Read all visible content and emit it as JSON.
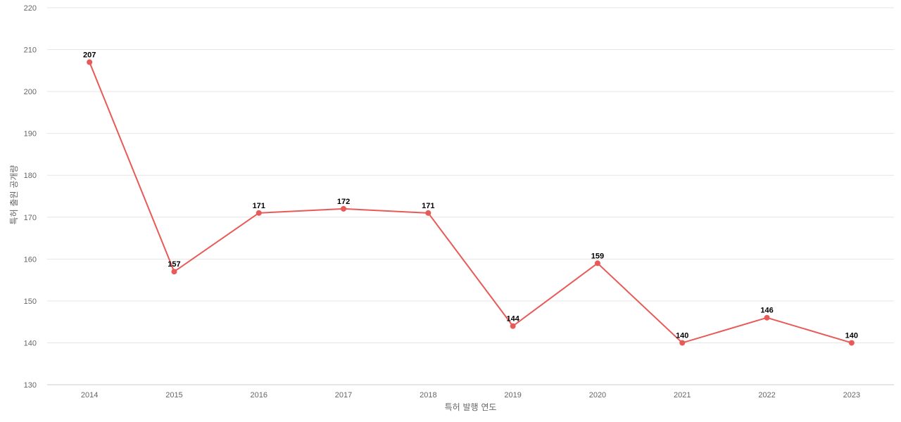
{
  "chart_data": {
    "type": "line",
    "title": "",
    "xlabel": "특허 발행 연도",
    "ylabel": "특허 출원 공개량",
    "categories": [
      "2014",
      "2015",
      "2016",
      "2017",
      "2018",
      "2019",
      "2020",
      "2021",
      "2022",
      "2023"
    ],
    "series": [
      {
        "values": [
          207,
          157,
          171,
          172,
          171,
          144,
          159,
          140,
          146,
          140
        ],
        "color": "#e85a57"
      }
    ],
    "ylim": [
      130,
      220
    ],
    "yticks": [
      130,
      140,
      150,
      160,
      170,
      180,
      190,
      200,
      210,
      220
    ],
    "grid": true,
    "legend": "none",
    "data_labels": true
  }
}
